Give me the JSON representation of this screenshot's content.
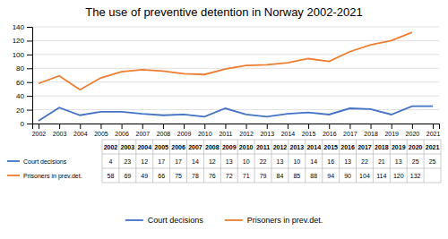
{
  "chart_data": {
    "type": "line",
    "title": "The use of preventive detention in Norway 2002-2021",
    "x": [
      2002,
      2003,
      2004,
      2005,
      2006,
      2007,
      2008,
      2009,
      2010,
      2011,
      2012,
      2013,
      2014,
      2015,
      2016,
      2017,
      2018,
      2019,
      2020,
      2021
    ],
    "xlim": [
      2001.7,
      2021.3
    ],
    "xticks": [
      2002,
      2003,
      2004,
      2005,
      2006,
      2007,
      2008,
      2009,
      2010,
      2011,
      2012,
      2013,
      2014,
      2015,
      2016,
      2017,
      2018,
      2019,
      2020,
      2021
    ],
    "ylim": [
      0,
      140
    ],
    "yticks": [
      0,
      20,
      40,
      60,
      80,
      100,
      120,
      140
    ],
    "grid": true,
    "legend": "bottom",
    "series": [
      {
        "name": "Court decisions",
        "color": "#4472C4",
        "values": [
          4,
          23,
          12,
          17,
          17,
          14,
          12,
          13,
          10,
          22,
          13,
          10,
          14,
          16,
          13,
          22,
          21,
          13,
          25,
          25
        ]
      },
      {
        "name": "Prisoners in prev.det.",
        "color": "#ED7D31",
        "values": [
          58,
          69,
          49,
          66,
          75,
          78,
          76,
          72,
          71,
          79,
          84,
          85,
          88,
          94,
          90,
          104,
          114,
          120,
          132,
          null
        ]
      }
    ]
  }
}
